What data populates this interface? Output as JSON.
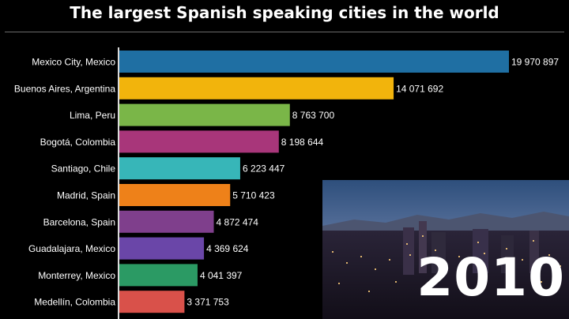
{
  "chart_data": {
    "type": "bar",
    "orientation": "horizontal",
    "title": "The largest Spanish speaking cities in the world",
    "xlabel": "",
    "ylabel": "",
    "year": "2010",
    "xlim": [
      0,
      20500000
    ],
    "grid": false,
    "categories": [
      "Mexico City, Mexico",
      "Buenos Aires, Argentina",
      "Lima, Peru",
      "Bogotá, Colombia",
      "Santiago, Chile",
      "Madrid, Spain",
      "Barcelona, Spain",
      "Guadalajara, Mexico",
      "Monterrey, Mexico",
      "Medellín, Colombia"
    ],
    "values": [
      19970897,
      14071692,
      8763700,
      8198644,
      6223447,
      5710423,
      4872474,
      4369624,
      4041397,
      3371753
    ],
    "value_labels": [
      "19 970 897",
      "14 071 692",
      "8 763 700",
      "8 198 644",
      "6 223 447",
      "5 710 423",
      "4 872 474",
      "4 369 624",
      "4 041 397",
      "3 371 753"
    ],
    "colors": [
      "#1f6fa3",
      "#f2b40c",
      "#7ab648",
      "#a8367a",
      "#37b6b8",
      "#ee8119",
      "#7f3f8c",
      "#6a46a8",
      "#2b9a64",
      "#d9514a"
    ]
  }
}
